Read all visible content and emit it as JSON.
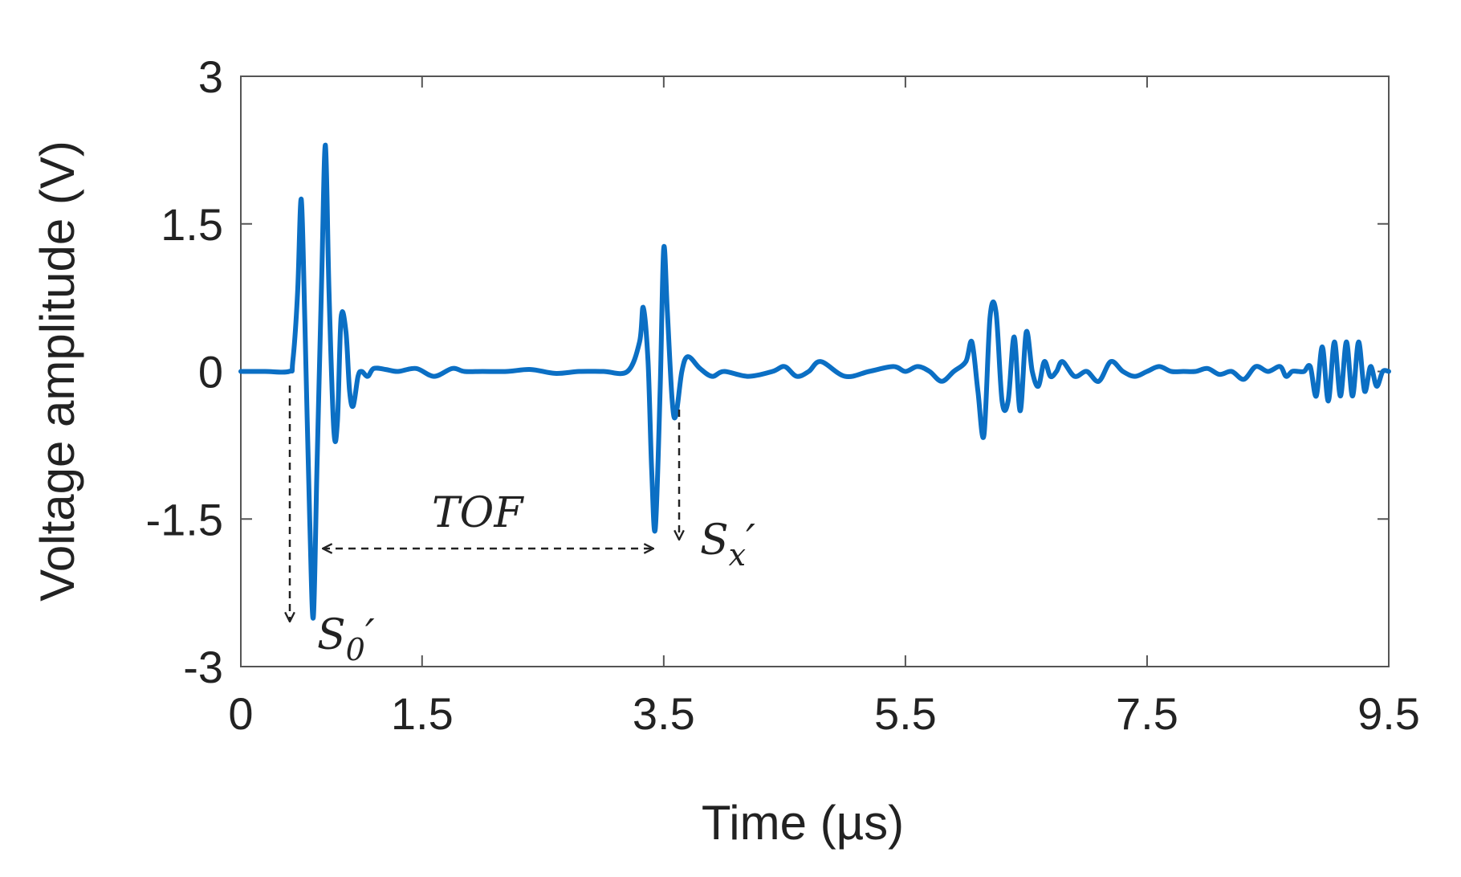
{
  "chart_data": {
    "type": "line",
    "title": "",
    "xlabel": "Time (µs)",
    "ylabel": "Voltage amplitude (V)",
    "xlim": [
      0,
      9.5
    ],
    "ylim": [
      -3,
      3
    ],
    "xticks": [
      "0",
      "1.5",
      "3.5",
      "5.5",
      "7.5",
      "9.5"
    ],
    "xtick_values": [
      0,
      1.5,
      3.5,
      5.5,
      7.5,
      9.5
    ],
    "yticks": [
      "3",
      "1.5",
      "0",
      "-1.5",
      "-3"
    ],
    "ytick_values": [
      3,
      1.5,
      0,
      -1.5,
      -3
    ],
    "grid": false,
    "line_color": "#0b6fc4",
    "series": [
      {
        "x": [
          0,
          0.2,
          0.4,
          0.43,
          0.47,
          0.5,
          0.53,
          0.57,
          0.6,
          0.63,
          0.67,
          0.7,
          0.73,
          0.77,
          0.8,
          0.83,
          0.87,
          0.9,
          0.93,
          0.97,
          1.0,
          1.05,
          1.1,
          1.2,
          1.3,
          1.45,
          1.6,
          1.75,
          1.85,
          2.0,
          2.2,
          2.4,
          2.6,
          2.8,
          3.0,
          3.2,
          3.3,
          3.33,
          3.37,
          3.4,
          3.43,
          3.47,
          3.5,
          3.53,
          3.57,
          3.6,
          3.65,
          3.7,
          3.8,
          3.9,
          4.0,
          4.2,
          4.4,
          4.5,
          4.6,
          4.7,
          4.8,
          5.0,
          5.2,
          5.4,
          5.5,
          5.6,
          5.7,
          5.8,
          5.9,
          6.0,
          6.05,
          6.1,
          6.15,
          6.2,
          6.25,
          6.3,
          6.35,
          6.4,
          6.45,
          6.5,
          6.55,
          6.6,
          6.65,
          6.7,
          6.75,
          6.8,
          6.9,
          7.0,
          7.1,
          7.2,
          7.3,
          7.4,
          7.5,
          7.6,
          7.7,
          7.8,
          7.9,
          8.0,
          8.1,
          8.2,
          8.3,
          8.4,
          8.5,
          8.6,
          8.65,
          8.7,
          8.75,
          8.8,
          8.85,
          8.9,
          8.95,
          9.0,
          9.05,
          9.1,
          9.15,
          9.2,
          9.25,
          9.3,
          9.35,
          9.4,
          9.45,
          9.5
        ],
        "y": [
          0,
          0,
          0,
          0.1,
          0.8,
          1.75,
          0.5,
          -1.5,
          -2.5,
          -1.0,
          1.0,
          2.3,
          0.8,
          -0.6,
          -0.5,
          0.55,
          0.4,
          -0.2,
          -0.35,
          -0.05,
          0.0,
          -0.05,
          0.03,
          0.02,
          0.0,
          0.03,
          -0.05,
          0.03,
          0.0,
          0.0,
          0.0,
          0.02,
          -0.02,
          0.0,
          0.0,
          0.0,
          0.3,
          0.65,
          0.1,
          -1.0,
          -1.6,
          -0.2,
          1.25,
          0.6,
          -0.3,
          -0.45,
          0.0,
          0.15,
          0.03,
          -0.05,
          0.0,
          -0.05,
          0.0,
          0.05,
          -0.05,
          0.0,
          0.1,
          -0.05,
          0.0,
          0.05,
          0.0,
          0.05,
          0.0,
          -0.1,
          0.0,
          0.1,
          0.3,
          -0.2,
          -0.65,
          0.55,
          0.6,
          -0.3,
          -0.3,
          0.35,
          -0.4,
          0.4,
          0.0,
          -0.15,
          0.1,
          -0.05,
          0.0,
          0.1,
          -0.05,
          0.0,
          -0.1,
          0.1,
          0.0,
          -0.05,
          0.0,
          0.05,
          0.0,
          0.0,
          0.0,
          0.03,
          -0.03,
          0.0,
          -0.08,
          0.05,
          0.0,
          0.05,
          -0.05,
          0.0,
          0.0,
          0.0,
          0.05,
          -0.25,
          0.25,
          -0.3,
          0.3,
          -0.25,
          0.3,
          -0.25,
          0.3,
          -0.2,
          0.05,
          -0.15,
          0.0,
          0.0
        ]
      }
    ],
    "annotations": {
      "tof_label": "TOF",
      "s0_base": "S",
      "s0_sub": "0",
      "s0_prime": "′",
      "sx_base": "S",
      "sx_sub": "x",
      "sx_prime": "′"
    }
  }
}
